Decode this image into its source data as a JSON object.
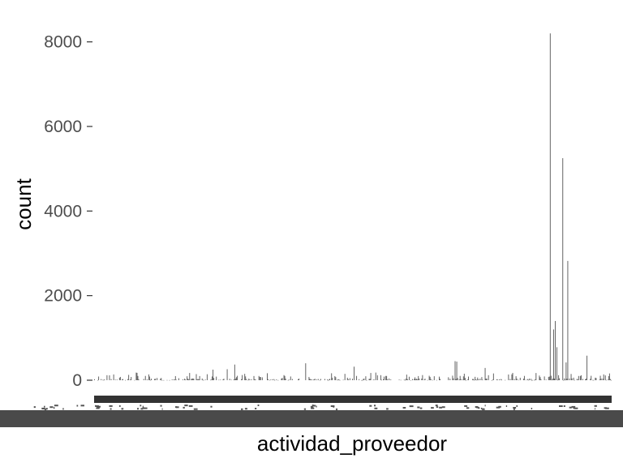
{
  "chart_data": {
    "type": "bar",
    "title": "",
    "xlabel": "actividad_proveedor",
    "ylabel": "count",
    "ylim": [
      0,
      8300
    ],
    "yticks": [
      0,
      2000,
      4000,
      6000,
      8000
    ],
    "ytick_labels": [
      "0",
      "2000",
      "4000",
      "6000",
      "8000"
    ],
    "bar_color": "#595959",
    "grid": false,
    "legend": "none",
    "n_categories": 620,
    "tick_labels_readable": false,
    "notable_bars": [
      {
        "category_index": 546,
        "value": 8200
      },
      {
        "category_index": 561,
        "value": 5250
      },
      {
        "category_index": 567,
        "value": 2820
      },
      {
        "category_index": 552,
        "value": 1400
      },
      {
        "category_index": 550,
        "value": 1200
      },
      {
        "category_index": 554,
        "value": 780
      },
      {
        "category_index": 590,
        "value": 580
      },
      {
        "category_index": 565,
        "value": 420
      },
      {
        "category_index": 432,
        "value": 450
      },
      {
        "category_index": 434,
        "value": 440
      },
      {
        "category_index": 253,
        "value": 400
      },
      {
        "category_index": 311,
        "value": 320
      },
      {
        "category_index": 168,
        "value": 370
      },
      {
        "category_index": 142,
        "value": 250
      },
      {
        "category_index": 159,
        "value": 260
      },
      {
        "category_index": 468,
        "value": 290
      },
      {
        "category_index": 50,
        "value": 180
      },
      {
        "category_index": 617,
        "value": 160
      },
      {
        "category_index": 337,
        "value": 180
      },
      {
        "category_index": 180,
        "value": 150
      }
    ]
  }
}
